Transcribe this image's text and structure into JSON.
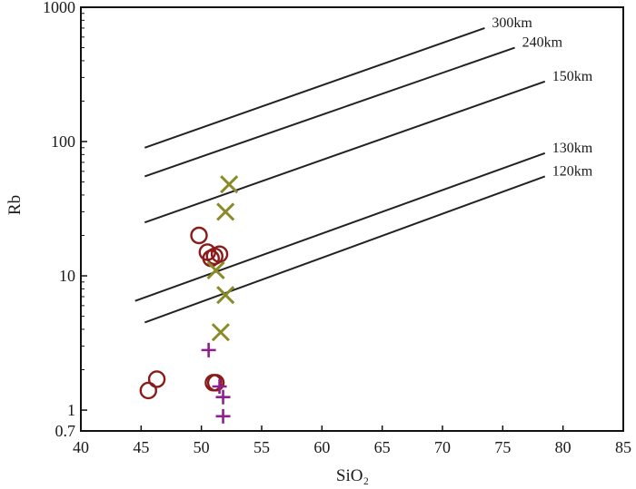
{
  "colors": {
    "circle": "#8b1a1a",
    "cross": "#8a8a28",
    "plus": "#8e1f8e",
    "line": "#222222",
    "axis": "#111111"
  },
  "chart_data": {
    "type": "scatter",
    "xlabel": "SiO₂",
    "ylabel": "Rb",
    "xlim": [
      40,
      85
    ],
    "ylim": [
      0.7,
      1000
    ],
    "y_scale": "log",
    "x_ticks": [
      40,
      45,
      50,
      55,
      60,
      65,
      70,
      75,
      80,
      85
    ],
    "y_ticks": [
      {
        "value": 0.7,
        "label": "0.7"
      },
      {
        "value": 1,
        "label": "1"
      },
      {
        "value": 10,
        "label": "10"
      },
      {
        "value": 100,
        "label": "100"
      },
      {
        "value": 1000,
        "label": "1000"
      }
    ],
    "grid": false,
    "reference_lines": [
      {
        "label": "300km",
        "x": [
          45.3,
          73.5
        ],
        "y": [
          90,
          700
        ]
      },
      {
        "label": "240km",
        "x": [
          45.3,
          76
        ],
        "y": [
          55,
          500
        ]
      },
      {
        "label": "150km",
        "x": [
          45.3,
          78.5
        ],
        "y": [
          25,
          280
        ]
      },
      {
        "label": "130km",
        "x": [
          44.5,
          78.5
        ],
        "y": [
          6.5,
          82
        ]
      },
      {
        "label": "120km",
        "x": [
          45.3,
          78.5
        ],
        "y": [
          4.5,
          55
        ]
      }
    ],
    "series": [
      {
        "marker": "circle",
        "points": [
          [
            45.6,
            1.4
          ],
          [
            46.3,
            1.7
          ],
          [
            49.8,
            20
          ],
          [
            50.5,
            15
          ],
          [
            50.8,
            13.5
          ],
          [
            51.1,
            14
          ],
          [
            51.5,
            14.5
          ],
          [
            51.0,
            1.6
          ],
          [
            51.2,
            1.6
          ]
        ]
      },
      {
        "marker": "cross",
        "points": [
          [
            52.3,
            48
          ],
          [
            52.0,
            30
          ],
          [
            51.2,
            11
          ],
          [
            52.0,
            7.2
          ],
          [
            51.6,
            3.8
          ]
        ]
      },
      {
        "marker": "plus",
        "points": [
          [
            50.6,
            2.8
          ],
          [
            51.5,
            1.5
          ],
          [
            51.8,
            1.25
          ],
          [
            51.8,
            0.9
          ]
        ]
      }
    ]
  }
}
